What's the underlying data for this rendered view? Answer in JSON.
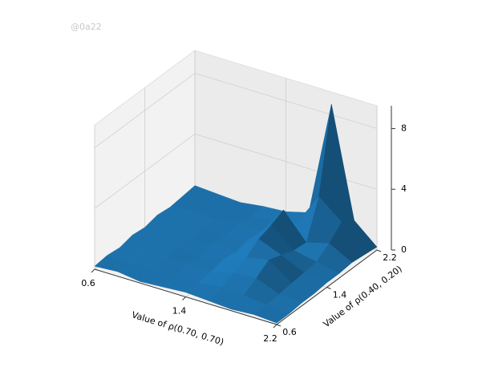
{
  "watermark": "@0a22",
  "chart_data": {
    "type": "surface",
    "xlabel": "Value of ρ(0.70, 0.70)",
    "ylabel": "Value of ρ(0.40, 0.20)",
    "x": [
      0.6,
      0.8,
      1.0,
      1.2,
      1.4,
      1.6,
      1.8,
      2.0,
      2.2
    ],
    "y": [
      0.6,
      0.8,
      1.0,
      1.2,
      1.4,
      1.6,
      1.8,
      2.0,
      2.2
    ],
    "z": [
      [
        0.2,
        0.3,
        0.1,
        0.2,
        0.3,
        0.2,
        0.1,
        0.2,
        0.1
      ],
      [
        0.3,
        0.2,
        0.4,
        0.2,
        0.3,
        0.5,
        0.4,
        0.2,
        0.1
      ],
      [
        0.2,
        0.4,
        0.3,
        0.5,
        0.4,
        0.8,
        0.9,
        0.3,
        0.2
      ],
      [
        0.4,
        0.3,
        0.5,
        0.3,
        0.6,
        1.2,
        1.5,
        0.4,
        0.2
      ],
      [
        0.3,
        0.5,
        0.4,
        0.6,
        0.5,
        1.8,
        1.2,
        0.5,
        0.3
      ],
      [
        0.5,
        0.4,
        0.6,
        0.4,
        0.7,
        2.1,
        0.9,
        0.6,
        0.3
      ],
      [
        0.4,
        0.6,
        0.5,
        0.7,
        0.6,
        2.5,
        0.8,
        1.2,
        0.4
      ],
      [
        0.5,
        0.4,
        0.6,
        0.5,
        0.8,
        1.0,
        3.2,
        2.0,
        0.3
      ],
      [
        0.6,
        0.5,
        0.4,
        0.6,
        0.7,
        1.1,
        8.7,
        1.5,
        0.2
      ]
    ],
    "xlim": [
      0.6,
      2.2
    ],
    "ylim": [
      0.6,
      2.2
    ],
    "zlim": [
      0,
      9.5
    ],
    "xticks": [
      0.6,
      1.4,
      2.2
    ],
    "yticks": [
      0.6,
      1.4,
      2.2
    ],
    "zticks": [
      0,
      4,
      8
    ],
    "color": "#1f77b4",
    "grid": true
  }
}
